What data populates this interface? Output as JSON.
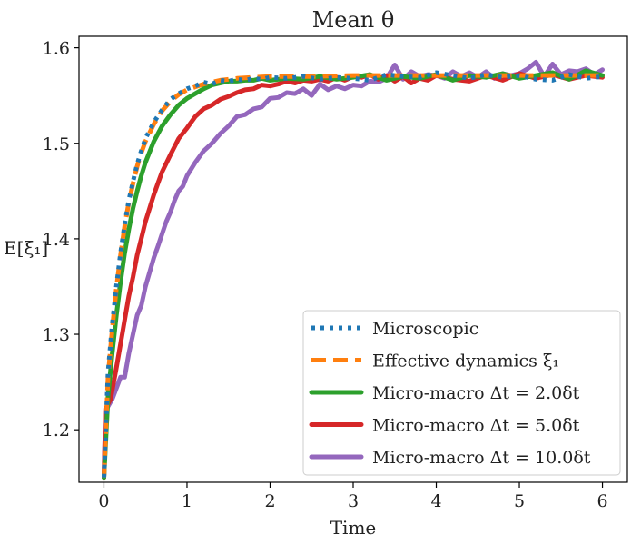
{
  "chart_data": {
    "type": "line",
    "title": "Mean θ",
    "xlabel": "Time",
    "ylabel": "E[ξ₁]",
    "xlim": [
      -0.3,
      6.3
    ],
    "ylim": [
      1.145,
      1.612
    ],
    "xticks": [
      0,
      1,
      2,
      3,
      4,
      5,
      6
    ],
    "yticks": [
      1.2,
      1.3,
      1.4,
      1.5,
      1.6
    ],
    "xtick_labels": [
      "0",
      "1",
      "2",
      "3",
      "4",
      "5",
      "6"
    ],
    "ytick_labels": [
      "1.2",
      "1.3",
      "1.4",
      "1.5",
      "1.6"
    ],
    "legend_position": "bottom-right",
    "series": [
      {
        "name": "Microscopic",
        "color": "#1f77b4",
        "style": "dotted",
        "x": [
          0,
          0.05,
          0.1,
          0.15,
          0.2,
          0.25,
          0.3,
          0.35,
          0.4,
          0.45,
          0.5,
          0.6,
          0.7,
          0.8,
          0.9,
          1.0,
          1.1,
          1.2,
          1.3,
          1.4,
          1.5,
          1.6,
          1.7,
          1.8,
          1.9,
          2.0,
          2.2,
          2.4,
          2.6,
          2.8,
          3.0,
          3.2,
          3.4,
          3.6,
          3.8,
          4.0,
          4.2,
          4.4,
          4.6,
          4.8,
          5.0,
          5.2,
          5.4,
          5.6,
          5.8,
          6.0
        ],
        "values": [
          1.15,
          1.26,
          1.31,
          1.35,
          1.385,
          1.415,
          1.44,
          1.46,
          1.478,
          1.492,
          1.505,
          1.522,
          1.535,
          1.546,
          1.552,
          1.557,
          1.56,
          1.564,
          1.562,
          1.566,
          1.565,
          1.567,
          1.566,
          1.568,
          1.567,
          1.569,
          1.568,
          1.57,
          1.567,
          1.569,
          1.568,
          1.566,
          1.572,
          1.57,
          1.569,
          1.574,
          1.571,
          1.568,
          1.572,
          1.569,
          1.571,
          1.567,
          1.566,
          1.572,
          1.568,
          1.57
        ]
      },
      {
        "name": "Effective dynamics ξ₁",
        "color": "#ff7f0e",
        "style": "dashed",
        "x": [
          0,
          0.05,
          0.1,
          0.15,
          0.2,
          0.25,
          0.3,
          0.35,
          0.4,
          0.45,
          0.5,
          0.6,
          0.7,
          0.8,
          0.9,
          1.0,
          1.1,
          1.2,
          1.3,
          1.4,
          1.5,
          1.6,
          1.8,
          2.0,
          2.5,
          3.0,
          3.5,
          4.0,
          4.5,
          5.0,
          5.5,
          6.0
        ],
        "values": [
          1.15,
          1.255,
          1.305,
          1.348,
          1.383,
          1.413,
          1.438,
          1.458,
          1.476,
          1.49,
          1.502,
          1.52,
          1.534,
          1.544,
          1.551,
          1.556,
          1.559,
          1.562,
          1.564,
          1.566,
          1.567,
          1.568,
          1.569,
          1.57,
          1.57,
          1.571,
          1.571,
          1.571,
          1.571,
          1.571,
          1.571,
          1.571
        ]
      },
      {
        "name": "Micro-macro Δt = 2.0δt",
        "color": "#2ca02c",
        "style": "solid",
        "x": [
          0,
          0.05,
          0.1,
          0.15,
          0.2,
          0.25,
          0.3,
          0.35,
          0.4,
          0.45,
          0.5,
          0.6,
          0.7,
          0.8,
          0.9,
          1.0,
          1.1,
          1.2,
          1.3,
          1.4,
          1.5,
          1.6,
          1.7,
          1.8,
          1.9,
          2.0,
          2.2,
          2.4,
          2.6,
          2.8,
          3.0,
          3.2,
          3.4,
          3.6,
          3.8,
          4.0,
          4.2,
          4.4,
          4.6,
          4.8,
          5.0,
          5.2,
          5.4,
          5.6,
          5.8,
          6.0
        ],
        "values": [
          1.15,
          1.235,
          1.28,
          1.32,
          1.355,
          1.385,
          1.41,
          1.432,
          1.45,
          1.466,
          1.48,
          1.502,
          1.518,
          1.53,
          1.54,
          1.547,
          1.552,
          1.557,
          1.561,
          1.563,
          1.565,
          1.565,
          1.566,
          1.566,
          1.568,
          1.566,
          1.568,
          1.567,
          1.57,
          1.567,
          1.569,
          1.572,
          1.566,
          1.57,
          1.568,
          1.572,
          1.566,
          1.571,
          1.569,
          1.573,
          1.568,
          1.571,
          1.574,
          1.567,
          1.576,
          1.571
        ]
      },
      {
        "name": "Micro-macro Δt = 5.0δt",
        "color": "#d62728",
        "style": "solid",
        "x": [
          0,
          0.02,
          0.08,
          0.15,
          0.2,
          0.25,
          0.3,
          0.35,
          0.4,
          0.45,
          0.5,
          0.55,
          0.6,
          0.65,
          0.7,
          0.8,
          0.9,
          1.0,
          1.1,
          1.2,
          1.3,
          1.4,
          1.5,
          1.6,
          1.7,
          1.8,
          1.9,
          2.0,
          2.1,
          2.2,
          2.3,
          2.4,
          2.5,
          2.6,
          2.7,
          2.8,
          2.9,
          3.0,
          3.1,
          3.2,
          3.3,
          3.4,
          3.5,
          3.6,
          3.7,
          3.8,
          3.9,
          4.0,
          4.2,
          4.4,
          4.6,
          4.8,
          5.0,
          5.2,
          5.4,
          5.6,
          5.8,
          6.0
        ],
        "values": [
          1.15,
          1.222,
          1.232,
          1.265,
          1.29,
          1.315,
          1.34,
          1.36,
          1.383,
          1.4,
          1.418,
          1.432,
          1.446,
          1.458,
          1.47,
          1.488,
          1.505,
          1.516,
          1.528,
          1.536,
          1.54,
          1.546,
          1.549,
          1.553,
          1.556,
          1.557,
          1.561,
          1.56,
          1.562,
          1.565,
          1.563,
          1.566,
          1.565,
          1.567,
          1.565,
          1.569,
          1.566,
          1.57,
          1.569,
          1.572,
          1.567,
          1.571,
          1.565,
          1.57,
          1.563,
          1.568,
          1.566,
          1.571,
          1.567,
          1.565,
          1.571,
          1.566,
          1.573,
          1.568,
          1.572,
          1.567,
          1.571,
          1.569
        ]
      },
      {
        "name": "Micro-macro Δt = 10.0δt",
        "color": "#9467bd",
        "style": "solid",
        "x": [
          0,
          0.02,
          0.1,
          0.2,
          0.25,
          0.3,
          0.35,
          0.4,
          0.45,
          0.5,
          0.55,
          0.6,
          0.65,
          0.7,
          0.75,
          0.8,
          0.85,
          0.9,
          0.95,
          1.0,
          1.1,
          1.2,
          1.3,
          1.4,
          1.5,
          1.6,
          1.7,
          1.8,
          1.9,
          2.0,
          2.1,
          2.2,
          2.3,
          2.4,
          2.5,
          2.6,
          2.7,
          2.8,
          2.9,
          3.0,
          3.1,
          3.2,
          3.3,
          3.4,
          3.5,
          3.6,
          3.7,
          3.8,
          3.9,
          4.0,
          4.1,
          4.2,
          4.3,
          4.4,
          4.5,
          4.6,
          4.7,
          4.8,
          4.9,
          5.0,
          5.1,
          5.2,
          5.3,
          5.4,
          5.5,
          5.6,
          5.7,
          5.8,
          5.9,
          6.0
        ],
        "values": [
          1.15,
          1.22,
          1.232,
          1.255,
          1.255,
          1.28,
          1.3,
          1.32,
          1.33,
          1.35,
          1.365,
          1.38,
          1.392,
          1.405,
          1.418,
          1.428,
          1.44,
          1.45,
          1.455,
          1.466,
          1.48,
          1.492,
          1.5,
          1.51,
          1.518,
          1.528,
          1.53,
          1.536,
          1.538,
          1.547,
          1.548,
          1.553,
          1.552,
          1.557,
          1.55,
          1.562,
          1.556,
          1.56,
          1.557,
          1.561,
          1.56,
          1.565,
          1.564,
          1.568,
          1.582,
          1.567,
          1.575,
          1.57,
          1.572,
          1.571,
          1.568,
          1.575,
          1.57,
          1.574,
          1.569,
          1.575,
          1.568,
          1.573,
          1.571,
          1.573,
          1.578,
          1.585,
          1.57,
          1.583,
          1.572,
          1.576,
          1.575,
          1.578,
          1.572,
          1.577
        ]
      }
    ]
  }
}
